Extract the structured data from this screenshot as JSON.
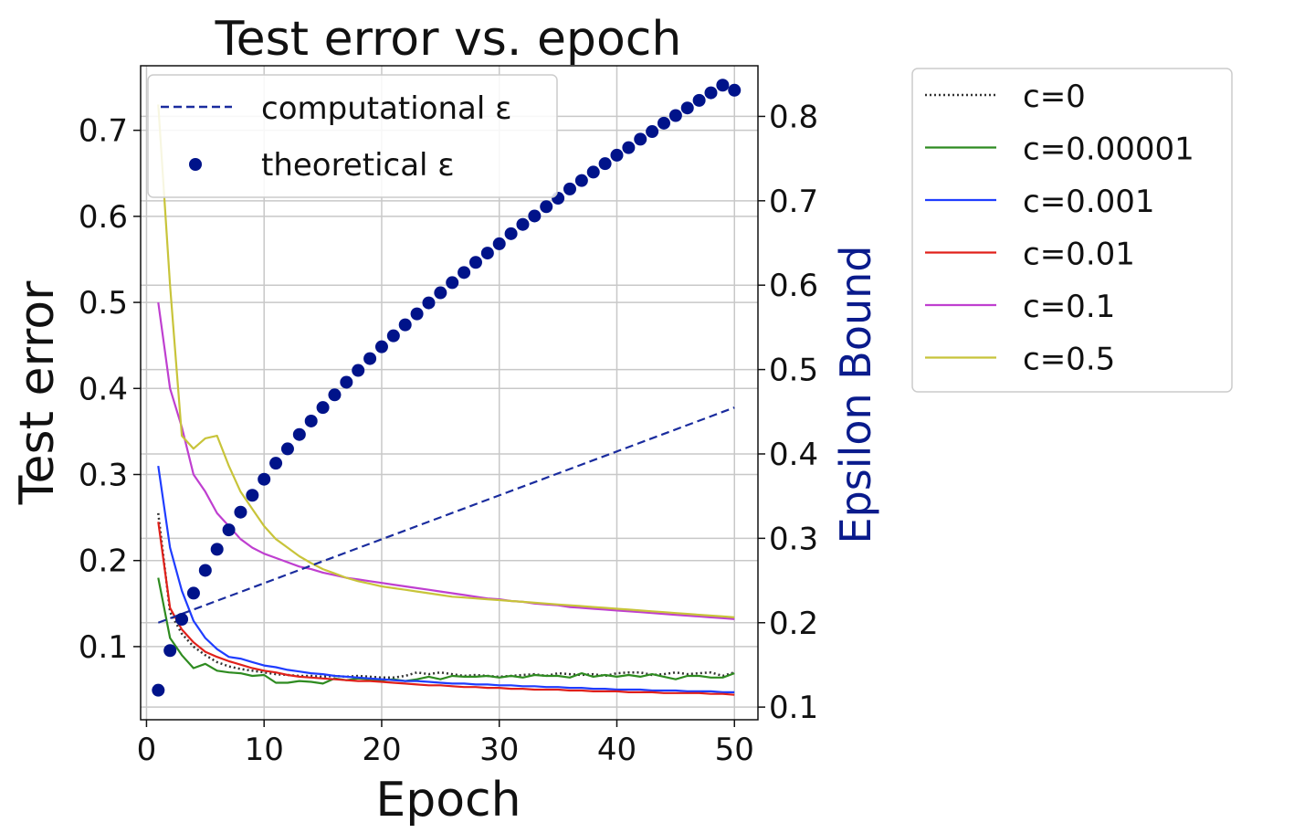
{
  "chart_data": {
    "type": "line",
    "title": "Test error vs. epoch",
    "xlabel": "Epoch",
    "ylabel": "Test error",
    "y2label": "Epsilon Bound",
    "xlim": [
      -0.5,
      52
    ],
    "ylim": [
      0.015,
      0.775
    ],
    "y2lim": [
      0.085,
      0.86
    ],
    "xticks": [
      0,
      10,
      20,
      30,
      40,
      50
    ],
    "yticks": [
      0.1,
      0.2,
      0.3,
      0.4,
      0.5,
      0.6,
      0.7
    ],
    "y2ticks": [
      0.1,
      0.2,
      0.3,
      0.4,
      0.5,
      0.6,
      0.7,
      0.8
    ],
    "grid": true,
    "colors": {
      "c0": "#333333",
      "c000001": "#2e8b20",
      "c0001": "#1f3dff",
      "c001": "#e0201a",
      "c01": "#bf3fd0",
      "c05": "#c8c43a",
      "eps": "#00138a"
    },
    "series": [
      {
        "name": "c=0",
        "color_key": "c0",
        "style": "dotted",
        "x_start": 1,
        "values": [
          0.255,
          0.14,
          0.115,
          0.1,
          0.09,
          0.082,
          0.077,
          0.074,
          0.072,
          0.07,
          0.068,
          0.067,
          0.066,
          0.066,
          0.065,
          0.066,
          0.065,
          0.066,
          0.065,
          0.064,
          0.064,
          0.066,
          0.07,
          0.068,
          0.07,
          0.068,
          0.066,
          0.067,
          0.066,
          0.065,
          0.066,
          0.067,
          0.068,
          0.066,
          0.069,
          0.068,
          0.067,
          0.068,
          0.066,
          0.069,
          0.07,
          0.07,
          0.067,
          0.068,
          0.07,
          0.068,
          0.069,
          0.07,
          0.066,
          0.07
        ]
      },
      {
        "name": "c=0.00001",
        "color_key": "c000001",
        "style": "solid",
        "x_start": 1,
        "values": [
          0.18,
          0.11,
          0.09,
          0.075,
          0.08,
          0.072,
          0.07,
          0.069,
          0.066,
          0.067,
          0.058,
          0.058,
          0.06,
          0.059,
          0.057,
          0.063,
          0.061,
          0.063,
          0.062,
          0.061,
          0.062,
          0.06,
          0.062,
          0.065,
          0.062,
          0.066,
          0.065,
          0.065,
          0.066,
          0.064,
          0.066,
          0.064,
          0.067,
          0.066,
          0.066,
          0.064,
          0.069,
          0.065,
          0.067,
          0.065,
          0.067,
          0.065,
          0.068,
          0.065,
          0.062,
          0.066,
          0.066,
          0.064,
          0.064,
          0.069
        ]
      },
      {
        "name": "c=0.001",
        "color_key": "c0001",
        "style": "solid",
        "x_start": 1,
        "values": [
          0.31,
          0.215,
          0.165,
          0.13,
          0.11,
          0.097,
          0.088,
          0.086,
          0.082,
          0.078,
          0.076,
          0.073,
          0.071,
          0.069,
          0.068,
          0.066,
          0.065,
          0.064,
          0.063,
          0.062,
          0.061,
          0.06,
          0.06,
          0.059,
          0.058,
          0.057,
          0.057,
          0.056,
          0.056,
          0.055,
          0.055,
          0.054,
          0.054,
          0.053,
          0.053,
          0.052,
          0.052,
          0.051,
          0.051,
          0.05,
          0.05,
          0.05,
          0.049,
          0.049,
          0.049,
          0.048,
          0.048,
          0.048,
          0.047,
          0.047
        ]
      },
      {
        "name": "c=0.01",
        "color_key": "c001",
        "style": "solid",
        "x_start": 1,
        "values": [
          0.245,
          0.145,
          0.12,
          0.105,
          0.094,
          0.088,
          0.083,
          0.079,
          0.075,
          0.072,
          0.07,
          0.067,
          0.065,
          0.064,
          0.063,
          0.062,
          0.061,
          0.06,
          0.06,
          0.059,
          0.058,
          0.057,
          0.056,
          0.055,
          0.055,
          0.054,
          0.053,
          0.053,
          0.052,
          0.052,
          0.051,
          0.051,
          0.05,
          0.05,
          0.05,
          0.049,
          0.049,
          0.048,
          0.048,
          0.048,
          0.047,
          0.047,
          0.047,
          0.046,
          0.046,
          0.046,
          0.046,
          0.045,
          0.045,
          0.044
        ]
      },
      {
        "name": "c=0.1",
        "color_key": "c01",
        "style": "solid",
        "x_start": 1,
        "values": [
          0.5,
          0.4,
          0.355,
          0.3,
          0.28,
          0.255,
          0.24,
          0.225,
          0.215,
          0.208,
          0.203,
          0.198,
          0.193,
          0.19,
          0.186,
          0.183,
          0.18,
          0.178,
          0.176,
          0.174,
          0.172,
          0.17,
          0.168,
          0.166,
          0.164,
          0.162,
          0.16,
          0.158,
          0.156,
          0.155,
          0.153,
          0.152,
          0.15,
          0.149,
          0.148,
          0.146,
          0.145,
          0.144,
          0.143,
          0.142,
          0.141,
          0.14,
          0.139,
          0.138,
          0.137,
          0.136,
          0.135,
          0.134,
          0.133,
          0.132
        ]
      },
      {
        "name": "c=0.5",
        "color_key": "c05",
        "style": "solid",
        "x_start": 1,
        "values": [
          0.73,
          0.52,
          0.345,
          0.33,
          0.342,
          0.345,
          0.31,
          0.28,
          0.26,
          0.24,
          0.225,
          0.215,
          0.205,
          0.197,
          0.19,
          0.185,
          0.18,
          0.176,
          0.173,
          0.17,
          0.168,
          0.166,
          0.164,
          0.162,
          0.16,
          0.158,
          0.157,
          0.156,
          0.155,
          0.154,
          0.153,
          0.152,
          0.151,
          0.15,
          0.149,
          0.148,
          0.147,
          0.146,
          0.145,
          0.144,
          0.143,
          0.142,
          0.141,
          0.14,
          0.139,
          0.138,
          0.137,
          0.136,
          0.135,
          0.134
        ]
      }
    ],
    "epsilon": {
      "computational": {
        "name": "computational ε",
        "x": [
          1,
          50
        ],
        "values": [
          0.2,
          0.455
        ]
      },
      "theoretical": {
        "name": "theoretical ε",
        "x_start": 1,
        "values": [
          0.12,
          0.167,
          0.204,
          0.235,
          0.262,
          0.287,
          0.31,
          0.331,
          0.351,
          0.37,
          0.389,
          0.406,
          0.423,
          0.439,
          0.455,
          0.47,
          0.485,
          0.499,
          0.513,
          0.527,
          0.54,
          0.553,
          0.566,
          0.579,
          0.591,
          0.603,
          0.615,
          0.627,
          0.638,
          0.649,
          0.661,
          0.672,
          0.682,
          0.693,
          0.703,
          0.714,
          0.724,
          0.734,
          0.744,
          0.754,
          0.763,
          0.773,
          0.782,
          0.792,
          0.801,
          0.81,
          0.819,
          0.828,
          0.837,
          0.831
        ]
      }
    }
  }
}
